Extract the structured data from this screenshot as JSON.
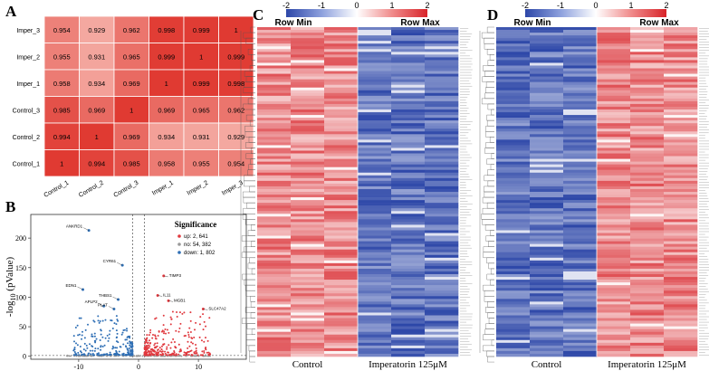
{
  "panels": {
    "a": {
      "letter": "A"
    },
    "b": {
      "letter": "B"
    },
    "c": {
      "letter": "C"
    },
    "d": {
      "letter": "D"
    }
  },
  "chart_data": [
    {
      "type": "heatmap",
      "id": "correlation",
      "row_labels": [
        "Imper_3",
        "Imper_2",
        "Imper_1",
        "Control_3",
        "Control_2",
        "Control_1"
      ],
      "col_labels": [
        "Control_1",
        "Control_2",
        "Control_3",
        "Imper_1",
        "Imper_2",
        "Imper_3"
      ],
      "values": [
        [
          "0.954",
          "0.929",
          "0.962",
          "0.998",
          "0.999",
          "1"
        ],
        [
          "0.955",
          "0.931",
          "0.965",
          "0.999",
          "1",
          "0.999"
        ],
        [
          "0.958",
          "0.934",
          "0.969",
          "1",
          "0.999",
          "0.998"
        ],
        [
          "0.985",
          "0.969",
          "1",
          "0.969",
          "0.965",
          "0.962"
        ],
        [
          "0.994",
          "1",
          "0.969",
          "0.934",
          "0.931",
          "0.929"
        ],
        [
          "1",
          "0.994",
          "0.985",
          "0.958",
          "0.955",
          "0.954"
        ]
      ],
      "colors": {
        "low": "#f4a8a0",
        "high": "#e03a32",
        "grid": "#ffffff"
      }
    },
    {
      "type": "scatter",
      "id": "volcano",
      "xlabel_main": "log",
      "xlabel_sub": "2",
      "xlabel_rest": " (Fold Change)",
      "ylabel_main": "-log",
      "ylabel_sub": "10",
      "ylabel_rest": " (pValue)",
      "x_ticks": [
        "-10",
        "0",
        "10"
      ],
      "x_tick_values": [
        -10,
        0,
        10
      ],
      "y_ticks": [
        "0",
        "50",
        "100",
        "150",
        "200"
      ],
      "y_tick_values": [
        0,
        50,
        100,
        150,
        200
      ],
      "xlim": [
        -18,
        18
      ],
      "ylim": [
        -5,
        240
      ],
      "legend_title": "Significance",
      "legend": [
        {
          "label": "up: 2, 641",
          "color": "#e0393f"
        },
        {
          "label": "no: 54, 382",
          "color": "#9a9a9a"
        },
        {
          "label": "down: 1, 802",
          "color": "#2f6fb5"
        }
      ],
      "annotations": [
        {
          "label": "ANKRD1",
          "x": -8.3,
          "y": 213
        },
        {
          "label": "CYR61",
          "x": -2.7,
          "y": 154
        },
        {
          "label": "EDN1",
          "x": -9.3,
          "y": 113
        },
        {
          "label": "THBS1",
          "x": -3.4,
          "y": 96
        },
        {
          "label": "APLP2",
          "x": -5.8,
          "y": 85
        },
        {
          "label": "PLAT",
          "x": -4.1,
          "y": 80
        },
        {
          "label": "TIMP3",
          "x": 4.2,
          "y": 136
        },
        {
          "label": "IL11",
          "x": 3.2,
          "y": 103
        },
        {
          "label": "MGB1",
          "x": 5.0,
          "y": 94
        },
        {
          "label": "SLC47A2",
          "x": 10.8,
          "y": 80
        }
      ],
      "thresholds": {
        "x": [
          -1,
          1
        ],
        "y": 1.3
      }
    },
    {
      "type": "heatmap",
      "id": "downregulated",
      "colorbar_ticks": [
        "-2",
        "-1",
        "0",
        "1",
        "2"
      ],
      "colorbar_range": [
        -2,
        2
      ],
      "row_min_label": "Row Min",
      "row_max_label": "Row Max",
      "group_labels": [
        "Control",
        "Imperatorin 125μM"
      ],
      "columns": 6,
      "rows": 120,
      "trend": "Control high, Imperatorin low"
    },
    {
      "type": "heatmap",
      "id": "upregulated",
      "colorbar_ticks": [
        "-2",
        "-1",
        "0",
        "1",
        "2"
      ],
      "colorbar_range": [
        -2,
        2
      ],
      "row_min_label": "Row Min",
      "row_max_label": "Row Max",
      "group_labels": [
        "Control",
        "Imperatorin 125μM"
      ],
      "columns": 6,
      "rows": 120,
      "trend": "Control low, Imperatorin high"
    }
  ]
}
